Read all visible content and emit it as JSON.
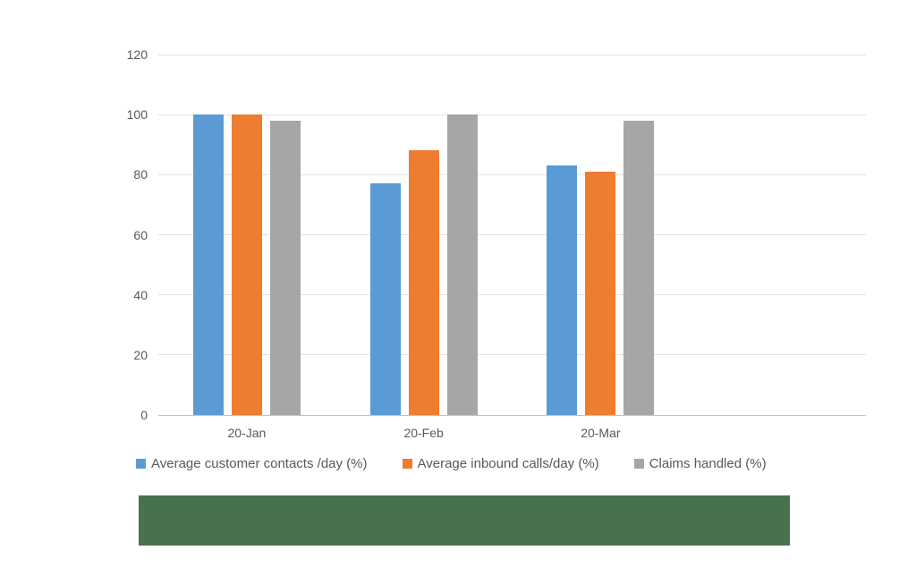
{
  "chart_data": {
    "type": "bar",
    "title": "",
    "xlabel": "",
    "ylabel": "",
    "categories": [
      "20-Jan",
      "20-Feb",
      "20-Mar"
    ],
    "series": [
      {
        "name": "Average customer contacts /day (%)",
        "color": "#5B9BD5",
        "values": [
          100,
          77,
          83
        ]
      },
      {
        "name": "Average inbound calls/day (%)",
        "color": "#ED7D31",
        "values": [
          100,
          88,
          81
        ]
      },
      {
        "name": "Claims handled (%)",
        "color": "#A6A6A6",
        "values": [
          98,
          100,
          98
        ]
      }
    ],
    "ylim": [
      0,
      120
    ],
    "yticks": [
      0,
      20,
      40,
      60,
      80,
      100,
      120
    ],
    "grid": true,
    "legend_position": "bottom",
    "num_category_slots": 4
  },
  "colors": {
    "background": "#FFFFFF",
    "axis_text": "#595959",
    "gridline": "#E2E2E2",
    "baseline": "#C0C0C0",
    "redaction_bar": "#47714F"
  }
}
